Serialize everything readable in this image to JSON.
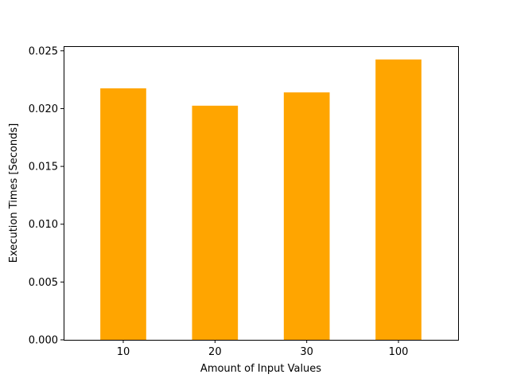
{
  "chart_data": {
    "type": "bar",
    "title": "",
    "categories": [
      "10",
      "20",
      "30",
      "100"
    ],
    "values": [
      0.02175,
      0.02025,
      0.0214,
      0.02425
    ],
    "xlabel": "Amount of Input Values",
    "ylabel": "Execution Times [Seconds]",
    "ylim": [
      0,
      0.0254
    ],
    "yticks": [
      0.0,
      0.005,
      0.01,
      0.015,
      0.02,
      0.025
    ],
    "ytick_labels": [
      "0.000",
      "0.005",
      "0.010",
      "0.015",
      "0.020",
      "0.025"
    ],
    "bar_color": "#ffa500",
    "grid": false,
    "legend": "none"
  }
}
